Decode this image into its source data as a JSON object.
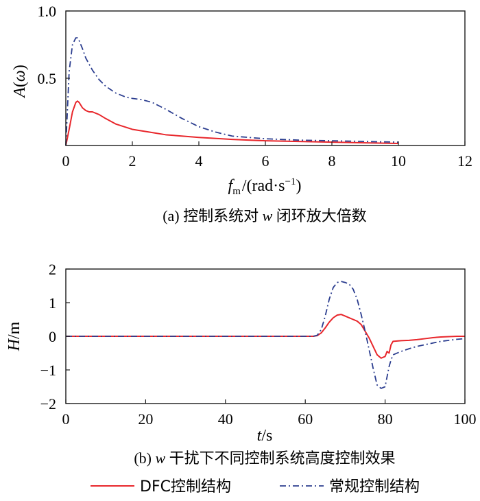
{
  "chart_data": [
    {
      "type": "line",
      "ylabel_main": "A",
      "ylabel_paren_open": "(",
      "ylabel_arg": "ω",
      "ylabel_paren_close": ")",
      "xlabel_main": "f",
      "xlabel_sub": "m",
      "xlabel_unit_pre": "/(rad·s",
      "xlabel_sup": "−1",
      "xlabel_unit_post": ")",
      "caption_prefix": "(a) 控制系统对 ",
      "caption_var": "w",
      "caption_suffix": " 闭环放大倍数",
      "xlim": [
        0,
        12
      ],
      "ylim": [
        0,
        1.0
      ],
      "xticks": [
        0,
        2,
        4,
        6,
        8,
        10,
        12
      ],
      "xtick_labels": [
        "0",
        "2",
        "4",
        "6",
        "8",
        "10",
        "12"
      ],
      "yticks": [
        0.5,
        1.0
      ],
      "ytick_labels": [
        "0.5",
        "1.0"
      ],
      "series": [
        {
          "name": "DFC控制结构",
          "color": "#e8262b",
          "style": "solid",
          "x": [
            0.0,
            0.1,
            0.2,
            0.3,
            0.35,
            0.4,
            0.5,
            0.6,
            0.7,
            0.8,
            1.0,
            1.2,
            1.5,
            2.0,
            2.5,
            3.0,
            4.0,
            5.0,
            6.0,
            7.0,
            8.0,
            9.0,
            10.0
          ],
          "y": [
            0.0,
            0.12,
            0.25,
            0.32,
            0.33,
            0.32,
            0.28,
            0.26,
            0.25,
            0.25,
            0.23,
            0.2,
            0.16,
            0.12,
            0.1,
            0.08,
            0.06,
            0.045,
            0.035,
            0.03,
            0.025,
            0.02,
            0.015
          ]
        },
        {
          "name": "常规控制结构",
          "color": "#2b3d8f",
          "style": "dashdot",
          "x": [
            0.0,
            0.1,
            0.2,
            0.3,
            0.35,
            0.4,
            0.5,
            0.6,
            0.8,
            1.0,
            1.2,
            1.5,
            1.8,
            2.0,
            2.3,
            2.6,
            3.0,
            3.5,
            4.0,
            4.5,
            5.0,
            6.0,
            7.0,
            8.0,
            9.0,
            10.0
          ],
          "y": [
            0.0,
            0.55,
            0.75,
            0.8,
            0.8,
            0.78,
            0.72,
            0.65,
            0.56,
            0.49,
            0.44,
            0.39,
            0.36,
            0.35,
            0.34,
            0.32,
            0.27,
            0.2,
            0.14,
            0.1,
            0.07,
            0.05,
            0.04,
            0.035,
            0.03,
            0.025
          ]
        }
      ]
    },
    {
      "type": "line",
      "ylabel_main": "H",
      "ylabel_unit": "/m",
      "xlabel_main": "t",
      "xlabel_unit": "/s",
      "caption_prefix": "(b) ",
      "caption_var": "w",
      "caption_suffix": " 干扰下不同控制系统高度控制效果",
      "xlim": [
        0,
        100
      ],
      "ylim": [
        -2,
        2
      ],
      "xticks": [
        0,
        20,
        40,
        60,
        80,
        100
      ],
      "xtick_labels": [
        "0",
        "20",
        "40",
        "60",
        "80",
        "100"
      ],
      "yticks": [
        -2,
        -1,
        0,
        1,
        2
      ],
      "ytick_labels": [
        "−2",
        "−1",
        "0",
        "1",
        "2"
      ],
      "series": [
        {
          "name": "DFC控制结构",
          "color": "#e8262b",
          "style": "solid",
          "x": [
            0,
            62,
            63,
            64,
            65,
            66,
            67,
            68,
            69,
            70,
            71,
            72,
            73,
            74,
            75,
            76,
            77,
            78,
            79,
            80,
            80.5,
            81,
            81.5,
            82,
            84,
            86,
            88,
            90,
            92,
            94,
            96,
            98,
            100
          ],
          "y": [
            0,
            0,
            0.02,
            0.1,
            0.25,
            0.42,
            0.55,
            0.63,
            0.65,
            0.6,
            0.55,
            0.5,
            0.45,
            0.35,
            0.15,
            -0.05,
            -0.3,
            -0.55,
            -0.65,
            -0.6,
            -0.45,
            -0.5,
            -0.25,
            -0.15,
            -0.13,
            -0.12,
            -0.1,
            -0.07,
            -0.04,
            -0.02,
            -0.01,
            0,
            0
          ]
        },
        {
          "name": "常规控制结构",
          "color": "#2b3d8f",
          "style": "dashdot",
          "x": [
            0,
            62,
            63,
            64,
            65,
            66,
            67,
            68,
            69,
            70,
            71,
            72,
            73,
            74,
            75,
            76,
            77,
            78,
            79,
            80,
            80.5,
            81,
            81.5,
            82,
            84,
            86,
            88,
            90,
            92,
            94,
            96,
            98,
            100
          ],
          "y": [
            0,
            0,
            0.03,
            0.2,
            0.6,
            1.1,
            1.45,
            1.6,
            1.63,
            1.6,
            1.55,
            1.4,
            1.1,
            0.65,
            0.15,
            -0.4,
            -0.95,
            -1.45,
            -1.55,
            -1.5,
            -1.2,
            -0.9,
            -0.7,
            -0.55,
            -0.45,
            -0.37,
            -0.3,
            -0.25,
            -0.2,
            -0.15,
            -0.12,
            -0.09,
            -0.07
          ]
        }
      ]
    }
  ],
  "legend": {
    "items": [
      {
        "label": "DFC控制结构",
        "color": "#e8262b",
        "style": "solid"
      },
      {
        "label": "常规控制结构",
        "color": "#2b3d8f",
        "style": "dashdot"
      }
    ]
  }
}
